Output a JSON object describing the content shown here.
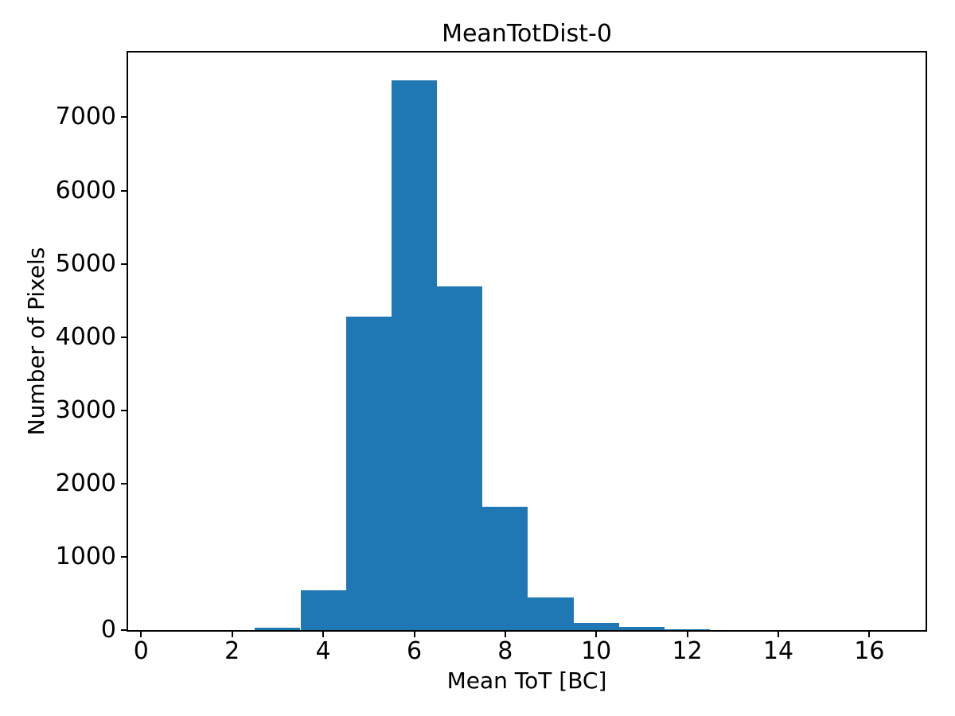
{
  "chart_data": {
    "type": "bar",
    "title": "MeanTotDist-0",
    "xlabel": "Mean ToT [BC]",
    "ylabel": "Number of Pixels",
    "bar_color": "#1f77b4",
    "bin_edges": [
      2.5,
      3.5,
      4.5,
      5.5,
      6.5,
      7.5,
      8.5,
      9.5,
      10.5,
      11.5,
      12.5
    ],
    "counts": [
      30,
      545,
      4280,
      7500,
      4690,
      1680,
      445,
      100,
      40,
      15
    ],
    "xlim": [
      -0.285,
      17.235
    ],
    "ylim": [
      0,
      7884
    ],
    "grid": false,
    "legend": null,
    "x_ticks": [
      {
        "value": 0,
        "label": "0"
      },
      {
        "value": 2,
        "label": "2"
      },
      {
        "value": 4,
        "label": "4"
      },
      {
        "value": 6,
        "label": "6"
      },
      {
        "value": 8,
        "label": "8"
      },
      {
        "value": 10,
        "label": "10"
      },
      {
        "value": 12,
        "label": "12"
      },
      {
        "value": 14,
        "label": "14"
      },
      {
        "value": 16,
        "label": "16"
      }
    ],
    "y_ticks": [
      {
        "value": 0,
        "label": "0"
      },
      {
        "value": 1000,
        "label": "1000"
      },
      {
        "value": 2000,
        "label": "2000"
      },
      {
        "value": 3000,
        "label": "3000"
      },
      {
        "value": 4000,
        "label": "4000"
      },
      {
        "value": 5000,
        "label": "5000"
      },
      {
        "value": 6000,
        "label": "6000"
      },
      {
        "value": 7000,
        "label": "7000"
      }
    ]
  }
}
